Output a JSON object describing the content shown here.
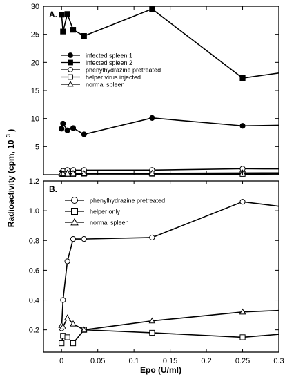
{
  "chart_data": [
    {
      "type": "line",
      "panel_label": "A.",
      "xlim": [
        -0.025,
        0.3
      ],
      "ylim": [
        0,
        30
      ],
      "yticks": [
        5,
        10,
        15,
        20,
        25,
        30
      ],
      "ytick_labels": [
        "5",
        "10",
        "15",
        "20",
        "25",
        "30"
      ],
      "legend_placement": "upper-left",
      "series": [
        {
          "name": "infected spleen 1",
          "marker": "filled-circle",
          "x": [
            0,
            0.002,
            0.008,
            0.016,
            0.031,
            0.125,
            0.25,
            0.3
          ],
          "y": [
            8.2,
            9.1,
            7.9,
            8.3,
            7.2,
            10.1,
            8.7,
            8.8
          ]
        },
        {
          "name": "infected spleen 2",
          "marker": "filled-square",
          "x": [
            0,
            0.002,
            0.008,
            0.016,
            0.031,
            0.125,
            0.25,
            0.3
          ],
          "y": [
            28.5,
            25.5,
            28.6,
            25.8,
            24.7,
            29.5,
            17.2,
            18.1
          ]
        },
        {
          "name": "phenylhydrazine pretreated",
          "marker": "open-circle",
          "x": [
            0,
            0.002,
            0.008,
            0.016,
            0.031,
            0.125,
            0.25,
            0.3
          ],
          "y": [
            0.4,
            0.66,
            0.81,
            0.81,
            0.81,
            0.82,
            1.06,
            1.03
          ]
        },
        {
          "name": "helper virus injected",
          "marker": "open-square",
          "x": [
            0,
            0.002,
            0.008,
            0.016,
            0.031,
            0.125,
            0.25,
            0.3
          ],
          "y": [
            0.11,
            0.15,
            0.15,
            0.12,
            0.19,
            0.18,
            0.15,
            0.17
          ]
        },
        {
          "name": "normal spleen",
          "marker": "open-triangle",
          "x": [
            0,
            0.002,
            0.008,
            0.016,
            0.031,
            0.125,
            0.25,
            0.3
          ],
          "y": [
            0.23,
            0.22,
            0.28,
            0.24,
            0.2,
            0.26,
            0.32,
            0.33
          ]
        }
      ]
    },
    {
      "type": "line",
      "panel_label": "B.",
      "xlim": [
        -0.025,
        0.3
      ],
      "ylim": [
        0.05,
        1.2
      ],
      "xticks": [
        0,
        0.05,
        0.1,
        0.15,
        0.2,
        0.25,
        0.3
      ],
      "xtick_labels": [
        "0",
        "0.05",
        "0.1",
        "0.15",
        "0.2",
        "0.25",
        "0.3"
      ],
      "yticks": [
        0.2,
        0.4,
        0.6,
        0.8,
        1.0,
        1.2
      ],
      "ytick_labels": [
        "0.2",
        "0.4",
        "0.6",
        "0.8",
        "1.0",
        "1.2"
      ],
      "legend_placement": "upper-left",
      "series": [
        {
          "name": "phenylhydrazine pretreated",
          "marker": "open-circle",
          "x": [
            0,
            0.002,
            0.008,
            0.016,
            0.031,
            0.125,
            0.25,
            0.3
          ],
          "y": [
            0.21,
            0.4,
            0.66,
            0.81,
            0.81,
            0.82,
            1.06,
            1.03
          ]
        },
        {
          "name": "helper only",
          "marker": "open-square",
          "x": [
            0,
            0.002,
            0.008,
            0.016,
            0.031,
            0.125,
            0.25,
            0.3
          ],
          "y": [
            0.11,
            0.16,
            0.15,
            0.11,
            0.2,
            0.18,
            0.15,
            0.17
          ]
        },
        {
          "name": "normal spleen",
          "marker": "open-triangle",
          "x": [
            0,
            0.002,
            0.008,
            0.016,
            0.031,
            0.125,
            0.25,
            0.3
          ],
          "y": [
            0.23,
            0.22,
            0.28,
            0.24,
            0.2,
            0.26,
            0.32,
            0.33
          ]
        }
      ]
    }
  ],
  "axes": {
    "ylabel_main": "Radioactivity   (cpm,   10",
    "ylabel_exponent": "3",
    "ylabel_close": ")",
    "xlabel": "Epo   (U/ml)"
  }
}
